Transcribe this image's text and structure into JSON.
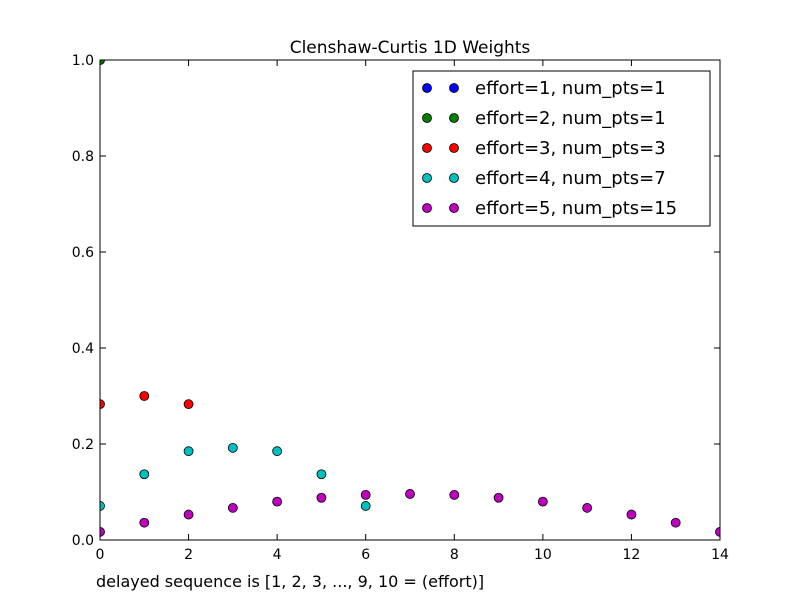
{
  "chart_data": {
    "type": "scatter",
    "title": "Clenshaw-Curtis 1D Weights",
    "xlabel": "delayed sequence is [1, 2, 3, ..., 9, 10 = (effort)]",
    "ylabel": "",
    "xlim": [
      0,
      14
    ],
    "ylim": [
      0,
      1.0
    ],
    "x_ticks": [
      0,
      2,
      4,
      6,
      8,
      10,
      12,
      14
    ],
    "x_tick_labels": [
      "0",
      "2",
      "4",
      "6",
      "8",
      "10",
      "12",
      "14"
    ],
    "y_ticks": [
      0.0,
      0.2,
      0.4,
      0.6,
      0.8,
      1.0
    ],
    "y_tick_labels": [
      "0.0",
      "0.2",
      "0.4",
      "0.6",
      "0.8",
      "1.0"
    ],
    "grid": false,
    "legend_position": "top-right",
    "series": [
      {
        "name": "effort=1, num_pts=1",
        "color": "#0000ff",
        "points": [
          [
            0,
            1.0
          ]
        ]
      },
      {
        "name": "effort=2, num_pts=1",
        "color": "#007f00",
        "points": [
          [
            0,
            1.0
          ]
        ]
      },
      {
        "name": "effort=3, num_pts=3",
        "color": "#ff0000",
        "points": [
          [
            0,
            0.283
          ],
          [
            1,
            0.3
          ],
          [
            2,
            0.283
          ]
        ]
      },
      {
        "name": "effort=4, num_pts=7",
        "color": "#00bfbf",
        "points": [
          [
            0,
            0.071
          ],
          [
            1,
            0.137
          ],
          [
            2,
            0.185
          ],
          [
            3,
            0.192
          ],
          [
            4,
            0.185
          ],
          [
            5,
            0.137
          ],
          [
            6,
            0.071
          ]
        ]
      },
      {
        "name": "effort=5, num_pts=15",
        "color": "#bf00bf",
        "points": [
          [
            0,
            0.017
          ],
          [
            1,
            0.036
          ],
          [
            2,
            0.053
          ],
          [
            3,
            0.067
          ],
          [
            4,
            0.08
          ],
          [
            5,
            0.088
          ],
          [
            6,
            0.094
          ],
          [
            7,
            0.096
          ],
          [
            8,
            0.094
          ],
          [
            9,
            0.088
          ],
          [
            10,
            0.08
          ],
          [
            11,
            0.067
          ],
          [
            12,
            0.053
          ],
          [
            13,
            0.036
          ],
          [
            14,
            0.017
          ]
        ]
      }
    ]
  }
}
